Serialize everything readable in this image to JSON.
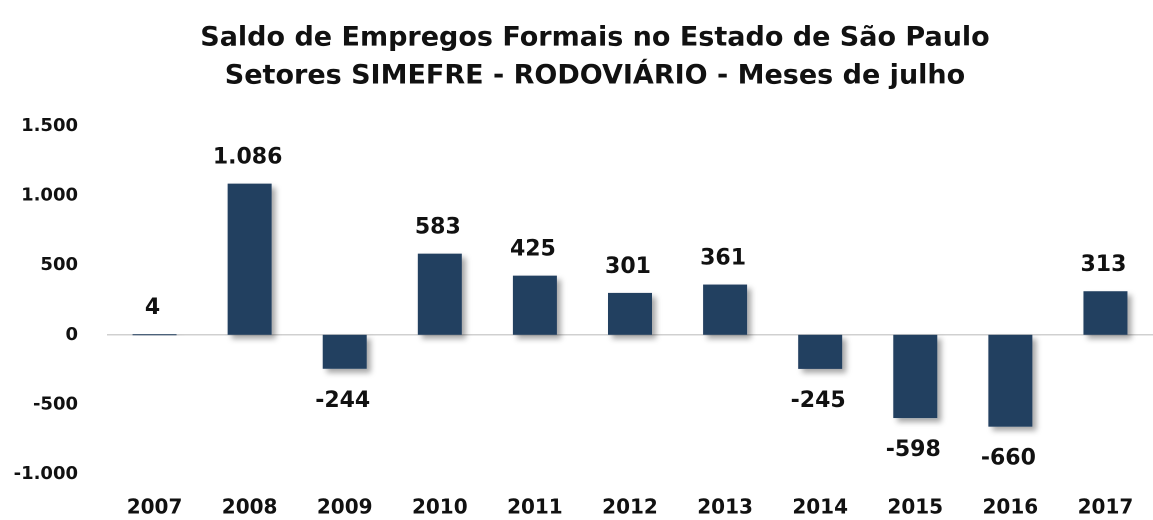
{
  "chart_data": {
    "type": "bar",
    "title": "Saldo de Empregos Formais no Estado de São Paulo",
    "subtitle": "Setores SIMEFRE - RODOVIÁRIO - Meses de julho",
    "categories": [
      "2007",
      "2008",
      "2009",
      "2010",
      "2011",
      "2012",
      "2013",
      "2014",
      "2015",
      "2016",
      "2017"
    ],
    "values": [
      4,
      1086,
      -244,
      583,
      425,
      301,
      361,
      -245,
      -598,
      -660,
      313
    ],
    "value_labels": [
      "4",
      "1.086",
      "-244",
      "583",
      "425",
      "301",
      "361",
      "-245",
      "-598",
      "-660",
      "313"
    ],
    "color": "#243f60",
    "ylim": [
      -1000,
      1500
    ],
    "yticks": [
      {
        "value": -1000,
        "label": "-1.000"
      },
      -500,
      0,
      500,
      {
        "value": 1000,
        "label": "1.000"
      },
      {
        "value": 1500,
        "label": "1.500"
      }
    ],
    "grid": false
  }
}
